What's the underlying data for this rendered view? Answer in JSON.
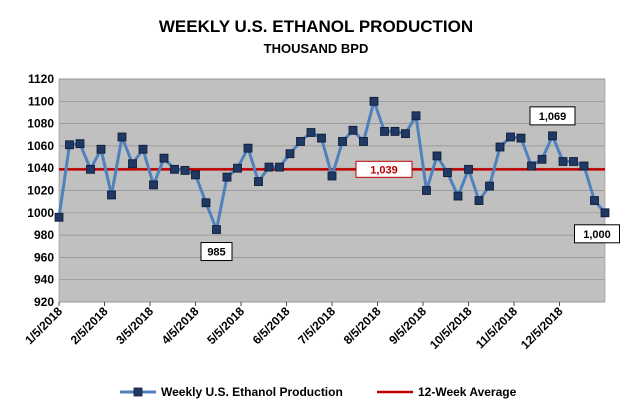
{
  "chart_data": {
    "type": "line",
    "title": "WEEKLY U.S. ETHANOL PRODUCTION",
    "subtitle": "THOUSAND BPD",
    "ylim": [
      920,
      1120
    ],
    "ytick_step": 20,
    "grid": "horizontal",
    "x_tick_labels": [
      "1/5/2018",
      "2/5/2018",
      "3/5/2018",
      "4/5/2018",
      "5/5/2018",
      "6/5/2018",
      "7/5/2018",
      "8/5/2018",
      "9/5/2018",
      "10/5/2018",
      "11/5/2018",
      "12/5/2018"
    ],
    "series": [
      {
        "name": "Weekly U.S. Ethanol Production",
        "color": "#4f81bd",
        "marker_fill": "#1f3864",
        "values": [
          996,
          1061,
          1062,
          1039,
          1057,
          1016,
          1068,
          1044,
          1057,
          1025,
          1049,
          1039,
          1038,
          1034,
          1009,
          985,
          1032,
          1040,
          1058,
          1028,
          1041,
          1041,
          1053,
          1064,
          1072,
          1067,
          1033,
          1064,
          1074,
          1064,
          1100,
          1073,
          1073,
          1071,
          1087,
          1020,
          1051,
          1036,
          1015,
          1039,
          1011,
          1024,
          1059,
          1068,
          1067,
          1042,
          1048,
          1069,
          1046,
          1046,
          1042,
          1011,
          1000
        ]
      },
      {
        "name": "12-Week Average",
        "color": "#c00000",
        "value": 1039
      }
    ],
    "callouts": [
      {
        "text": "985",
        "index": 15
      },
      {
        "text": "1,069",
        "index": 47
      },
      {
        "text": "1,000",
        "index": 52
      }
    ],
    "avg_label": "1,039",
    "plot_background": "#c0c0c0",
    "legend_position": "bottom"
  }
}
